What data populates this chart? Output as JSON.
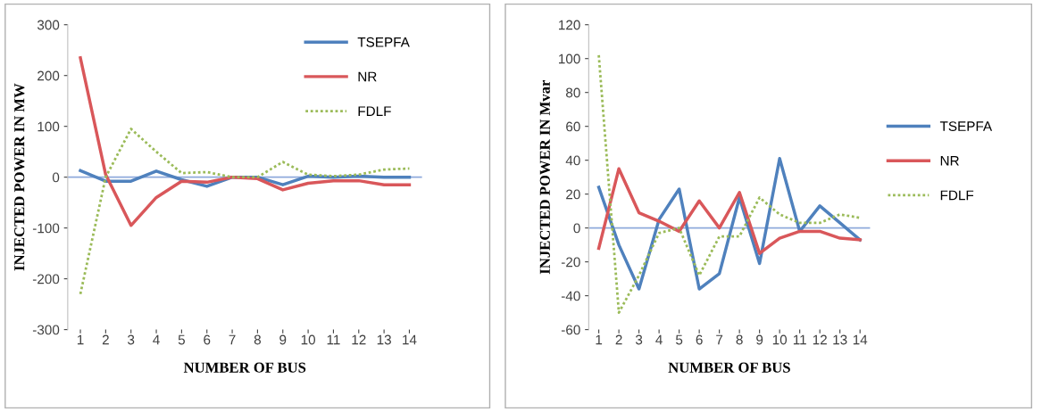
{
  "chart_data": [
    {
      "type": "line",
      "xlabel": "NUMBER OF BUS",
      "ylabel": "INJECTED POWER IN MW",
      "categories": [
        "1",
        "2",
        "3",
        "4",
        "5",
        "6",
        "7",
        "8",
        "9",
        "10",
        "11",
        "12",
        "13",
        "14"
      ],
      "ylim": [
        -300,
        300
      ],
      "yticks": [
        -300,
        -200,
        -100,
        0,
        100,
        200,
        300
      ],
      "grid": false,
      "ref_lines": [
        {
          "axis": "y",
          "value": 0,
          "color": "#8faadc"
        }
      ],
      "legend": "top right",
      "series": [
        {
          "name": "TSEPFA",
          "color": "#4f81bd",
          "line_style": "solid",
          "values": [
            13,
            -8,
            -8,
            12,
            -5,
            -18,
            0,
            0,
            -15,
            2,
            0,
            2,
            0,
            0
          ]
        },
        {
          "name": "NR",
          "color": "#d9575a",
          "line_style": "solid",
          "values": [
            235,
            5,
            -95,
            -40,
            -8,
            -10,
            0,
            -3,
            -25,
            -12,
            -7,
            -7,
            -15,
            -15
          ]
        },
        {
          "name": "FDLF",
          "color": "#9bbb59",
          "line_style": "dotted",
          "values": [
            -230,
            0,
            95,
            50,
            8,
            10,
            0,
            0,
            30,
            5,
            2,
            5,
            15,
            17
          ]
        }
      ]
    },
    {
      "type": "line",
      "xlabel": "NUMBER OF BUS",
      "ylabel": "INJECTED POWER IN Mvar",
      "categories": [
        "1",
        "2",
        "3",
        "4",
        "5",
        "6",
        "7",
        "8",
        "9",
        "10",
        "11",
        "12",
        "13",
        "14"
      ],
      "ylim": [
        -60,
        120
      ],
      "yticks": [
        -60,
        -40,
        -20,
        0,
        20,
        40,
        60,
        80,
        100,
        120
      ],
      "grid": false,
      "ref_lines": [
        {
          "axis": "y",
          "value": 0,
          "color": "#8faadc"
        }
      ],
      "legend": "right",
      "series": [
        {
          "name": "TSEPFA",
          "color": "#4f81bd",
          "line_style": "solid",
          "values": [
            24,
            -10,
            -36,
            5,
            23,
            -36,
            -27,
            18,
            -21,
            41,
            -2,
            13,
            3,
            -7
          ]
        },
        {
          "name": "NR",
          "color": "#d9575a",
          "line_style": "solid",
          "values": [
            -12,
            35,
            9,
            4,
            -2,
            16,
            0,
            21,
            -15,
            -6,
            -2,
            -2,
            -6,
            -7
          ]
        },
        {
          "name": "FDLF",
          "color": "#9bbb59",
          "line_style": "dotted",
          "values": [
            102,
            -50,
            -28,
            -3,
            0,
            -28,
            -5,
            -5,
            18,
            8,
            3,
            3,
            8,
            6
          ]
        }
      ]
    }
  ]
}
